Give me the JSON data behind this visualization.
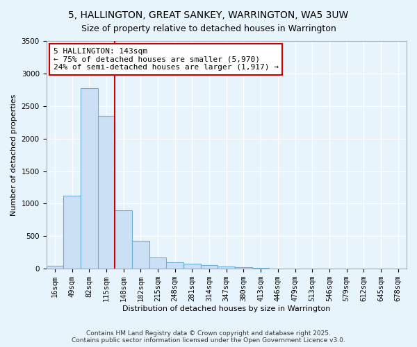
{
  "title": "5, HALLINGTON, GREAT SANKEY, WARRINGTON, WA5 3UW",
  "subtitle": "Size of property relative to detached houses in Warrington",
  "xlabel": "Distribution of detached houses by size in Warrington",
  "ylabel": "Number of detached properties",
  "categories": [
    "16sqm",
    "49sqm",
    "82sqm",
    "115sqm",
    "148sqm",
    "182sqm",
    "215sqm",
    "248sqm",
    "281sqm",
    "314sqm",
    "347sqm",
    "380sqm",
    "413sqm",
    "446sqm",
    "479sqm",
    "513sqm",
    "546sqm",
    "579sqm",
    "612sqm",
    "645sqm",
    "678sqm"
  ],
  "values": [
    40,
    1120,
    2780,
    2350,
    900,
    430,
    175,
    100,
    80,
    55,
    35,
    20,
    10,
    5,
    3,
    2,
    1,
    1,
    0,
    0,
    0
  ],
  "bar_color": "#cce0f5",
  "bar_edge_color": "#6aaed6",
  "vline_x": 3.5,
  "annotation_text": "5 HALLINGTON: 143sqm\n← 75% of detached houses are smaller (5,970)\n24% of semi-detached houses are larger (1,917) →",
  "annotation_box_color": "white",
  "annotation_box_edge_color": "#cc0000",
  "vline_color": "#cc0000",
  "ylim": [
    0,
    3500
  ],
  "yticks": [
    0,
    500,
    1000,
    1500,
    2000,
    2500,
    3000,
    3500
  ],
  "footer_line1": "Contains HM Land Registry data © Crown copyright and database right 2025.",
  "footer_line2": "Contains public sector information licensed under the Open Government Licence v3.0.",
  "bg_color": "#e8f4fc",
  "grid_color": "#ffffff",
  "title_fontsize": 10,
  "subtitle_fontsize": 9,
  "axis_label_fontsize": 8,
  "tick_fontsize": 7.5,
  "annotation_fontsize": 8
}
